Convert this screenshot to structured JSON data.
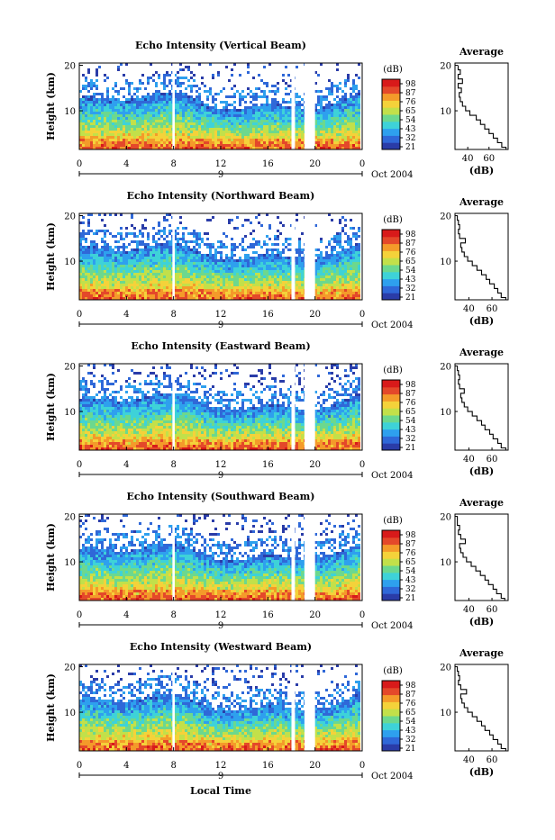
{
  "chart_data": [
    {
      "type": "heatmap",
      "title": "Echo Intensity (Vertical Beam)",
      "ylabel": "Height (km)",
      "xlabel": "",
      "x_ticks": [
        "0",
        "4",
        "8",
        "12",
        "16",
        "20",
        "0"
      ],
      "y_ticks": [
        "10",
        "20"
      ],
      "date_ticks": [
        "9"
      ],
      "date_label": "Oct 2004",
      "xlim": [
        0,
        24
      ],
      "ylim": [
        1.5,
        20.5
      ],
      "colorbar": {
        "label": "(dB)",
        "ticks": [
          "98",
          "87",
          "76",
          "65",
          "54",
          "43",
          "32",
          "21"
        ],
        "colors": [
          "#2a3ca8",
          "#2f68d8",
          "#2ea0ee",
          "#3ed2d8",
          "#6cd88e",
          "#c2e04a",
          "#f4d23a",
          "#f49a2a",
          "#e4482a",
          "#d81a1a"
        ]
      },
      "missing_gaps_hours": [
        [
          7.9,
          8.1
        ],
        [
          18.0,
          18.3
        ],
        [
          19.1,
          20.0
        ]
      ],
      "profile": {
        "title": "Average",
        "xlabel": "(dB)",
        "x_ticks": [
          "40",
          "60"
        ],
        "y_ticks": [
          "10",
          "20"
        ],
        "xlim": [
          28,
          78
        ],
        "ylim": [
          1.5,
          20.5
        ],
        "heights": [
          2,
          3,
          4,
          5,
          6,
          7,
          8,
          9,
          10,
          11,
          12,
          13,
          14,
          15,
          16,
          17,
          18,
          19,
          20
        ],
        "values": [
          76,
          72,
          68,
          64,
          60,
          56,
          52,
          48,
          42,
          38,
          35,
          33,
          32,
          34,
          31,
          35,
          31,
          33,
          31
        ]
      }
    },
    {
      "type": "heatmap",
      "title": "Echo Intensity (Northward Beam)",
      "ylabel": "Height (km)",
      "xlabel": "",
      "x_ticks": [
        "0",
        "4",
        "8",
        "12",
        "16",
        "20",
        "0"
      ],
      "y_ticks": [
        "10",
        "20"
      ],
      "date_ticks": [
        "9"
      ],
      "date_label": "Oct 2004",
      "xlim": [
        0,
        24
      ],
      "ylim": [
        1.5,
        20.5
      ],
      "colorbar": {
        "label": "(dB)",
        "ticks": [
          "98",
          "87",
          "76",
          "65",
          "54",
          "43",
          "32",
          "21"
        ],
        "colors": [
          "#2a3ca8",
          "#2f68d8",
          "#2ea0ee",
          "#3ed2d8",
          "#6cd88e",
          "#c2e04a",
          "#f4d23a",
          "#f49a2a",
          "#e4482a",
          "#d81a1a"
        ]
      },
      "missing_gaps_hours": [
        [
          7.9,
          8.1
        ],
        [
          18.0,
          18.3
        ],
        [
          19.1,
          20.0
        ]
      ],
      "profile": {
        "title": "Average",
        "xlabel": "(dB)",
        "x_ticks": [
          "40",
          "60"
        ],
        "y_ticks": [
          "10",
          "20"
        ],
        "xlim": [
          28,
          74
        ],
        "ylim": [
          1.5,
          20.5
        ],
        "heights": [
          2,
          3,
          4,
          5,
          6,
          7,
          8,
          9,
          10,
          11,
          12,
          13,
          14,
          15,
          16,
          17,
          18,
          19,
          20
        ],
        "values": [
          72,
          68,
          65,
          62,
          58,
          55,
          51,
          47,
          43,
          39,
          36,
          34,
          33,
          37,
          32,
          31,
          32,
          31,
          30
        ]
      }
    },
    {
      "type": "heatmap",
      "title": "Echo Intensity (Eastward Beam)",
      "ylabel": "Height (km)",
      "xlabel": "",
      "x_ticks": [
        "0",
        "4",
        "8",
        "12",
        "16",
        "20",
        "0"
      ],
      "y_ticks": [
        "10",
        "20"
      ],
      "date_ticks": [
        "9"
      ],
      "date_label": "Oct 2004",
      "xlim": [
        0,
        24
      ],
      "ylim": [
        1.5,
        20.5
      ],
      "colorbar": {
        "label": "(dB)",
        "ticks": [
          "98",
          "87",
          "76",
          "65",
          "54",
          "43",
          "32",
          "21"
        ],
        "colors": [
          "#2a3ca8",
          "#2f68d8",
          "#2ea0ee",
          "#3ed2d8",
          "#6cd88e",
          "#c2e04a",
          "#f4d23a",
          "#f49a2a",
          "#e4482a",
          "#d81a1a"
        ]
      },
      "missing_gaps_hours": [
        [
          7.9,
          8.1
        ],
        [
          18.0,
          18.3
        ],
        [
          19.1,
          20.0
        ]
      ],
      "profile": {
        "title": "Average",
        "xlabel": "(dB)",
        "x_ticks": [
          "40",
          "60"
        ],
        "y_ticks": [
          "10",
          "20"
        ],
        "xlim": [
          28,
          74
        ],
        "ylim": [
          1.5,
          20.5
        ],
        "heights": [
          2,
          3,
          4,
          5,
          6,
          7,
          8,
          9,
          10,
          11,
          12,
          13,
          14,
          15,
          16,
          17,
          18,
          19,
          20
        ],
        "values": [
          72,
          68,
          65,
          61,
          58,
          54,
          51,
          47,
          43,
          39,
          36,
          34,
          33,
          36,
          32,
          31,
          32,
          31,
          30
        ]
      }
    },
    {
      "type": "heatmap",
      "title": "Echo Intensity (Southward Beam)",
      "ylabel": "Height (km)",
      "xlabel": "",
      "x_ticks": [
        "0",
        "4",
        "8",
        "12",
        "16",
        "20",
        "0"
      ],
      "y_ticks": [
        "10",
        "20"
      ],
      "date_ticks": [
        "9"
      ],
      "date_label": "Oct 2004",
      "xlim": [
        0,
        24
      ],
      "ylim": [
        1.5,
        20.5
      ],
      "colorbar": {
        "label": "(dB)",
        "ticks": [
          "98",
          "87",
          "76",
          "65",
          "54",
          "43",
          "32",
          "21"
        ],
        "colors": [
          "#2a3ca8",
          "#2f68d8",
          "#2ea0ee",
          "#3ed2d8",
          "#6cd88e",
          "#c2e04a",
          "#f4d23a",
          "#f49a2a",
          "#e4482a",
          "#d81a1a"
        ]
      },
      "missing_gaps_hours": [
        [
          7.9,
          8.1
        ],
        [
          18.0,
          18.3
        ],
        [
          19.1,
          20.0
        ]
      ],
      "profile": {
        "title": "Average",
        "xlabel": "(dB)",
        "x_ticks": [
          "40",
          "60"
        ],
        "y_ticks": [
          "10",
          "20"
        ],
        "xlim": [
          28,
          74
        ],
        "ylim": [
          1.5,
          20.5
        ],
        "heights": [
          2,
          3,
          4,
          5,
          6,
          7,
          8,
          9,
          10,
          11,
          12,
          13,
          14,
          15,
          16,
          17,
          18,
          19,
          20
        ],
        "values": [
          71,
          68,
          64,
          61,
          57,
          54,
          50,
          46,
          42,
          38,
          35,
          33,
          32,
          37,
          33,
          31,
          32,
          30,
          30
        ]
      }
    },
    {
      "type": "heatmap",
      "title": "Echo Intensity (Westward Beam)",
      "ylabel": "Height (km)",
      "xlabel": "Local Time",
      "x_ticks": [
        "0",
        "4",
        "8",
        "12",
        "16",
        "20",
        "0"
      ],
      "y_ticks": [
        "10",
        "20"
      ],
      "date_ticks": [
        "9"
      ],
      "date_label": "Oct 2004",
      "xlim": [
        0,
        24
      ],
      "ylim": [
        1.5,
        20.5
      ],
      "colorbar": {
        "label": "(dB)",
        "ticks": [
          "98",
          "87",
          "76",
          "65",
          "54",
          "43",
          "32",
          "21"
        ],
        "colors": [
          "#2a3ca8",
          "#2f68d8",
          "#2ea0ee",
          "#3ed2d8",
          "#6cd88e",
          "#c2e04a",
          "#f4d23a",
          "#f49a2a",
          "#e4482a",
          "#d81a1a"
        ]
      },
      "missing_gaps_hours": [
        [
          7.9,
          8.1
        ],
        [
          18.0,
          18.3
        ],
        [
          19.1,
          20.0
        ]
      ],
      "profile": {
        "title": "Average",
        "xlabel": "(dB)",
        "x_ticks": [
          "40",
          "60"
        ],
        "y_ticks": [
          "10",
          "20"
        ],
        "xlim": [
          28,
          74
        ],
        "ylim": [
          1.5,
          20.5
        ],
        "heights": [
          2,
          3,
          4,
          5,
          6,
          7,
          8,
          9,
          10,
          11,
          12,
          13,
          14,
          15,
          16,
          17,
          18,
          19,
          20
        ],
        "values": [
          72,
          68,
          65,
          61,
          58,
          54,
          51,
          47,
          43,
          39,
          36,
          34,
          33,
          38,
          33,
          31,
          32,
          31,
          30
        ]
      }
    }
  ]
}
